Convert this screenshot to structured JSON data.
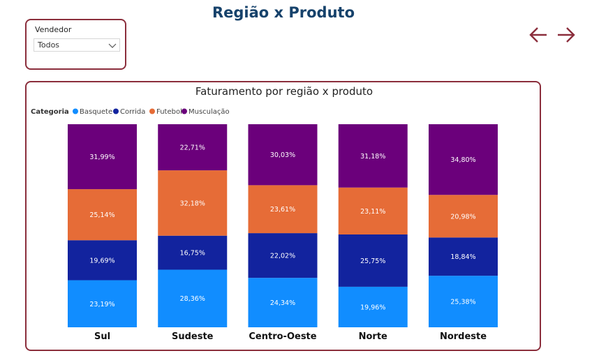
{
  "page": {
    "title": "Região x Produto"
  },
  "slicer": {
    "label": "Vendedor",
    "value": "Todos"
  },
  "nav": {
    "back_icon": "arrow-left-icon",
    "next_icon": "arrow-right-icon",
    "color": "#8b2e3c"
  },
  "chart_data": {
    "type": "bar",
    "stacked": "100%",
    "title": "Faturamento por região x produto",
    "legend_title": "Categoria",
    "legend_position": "top-left",
    "xlabel": "",
    "ylabel": "",
    "categories": [
      "Sul",
      "Sudeste",
      "Centro-Oeste",
      "Norte",
      "Nordeste"
    ],
    "series": [
      {
        "name": "Basquete",
        "color": "#118dff",
        "values": [
          23.19,
          28.36,
          24.34,
          19.96,
          25.38
        ],
        "labels": [
          "23,19%",
          "28,36%",
          "24,34%",
          "19,96%",
          "25,38%"
        ]
      },
      {
        "name": "Corrida",
        "color": "#12239e",
        "values": [
          19.69,
          16.75,
          22.02,
          25.75,
          18.84
        ],
        "labels": [
          "19,69%",
          "16,75%",
          "22,02%",
          "25,75%",
          "18,84%"
        ]
      },
      {
        "name": "Futebol",
        "color": "#e66c37",
        "values": [
          25.14,
          32.18,
          23.61,
          23.11,
          20.98
        ],
        "labels": [
          "25,14%",
          "32,18%",
          "23,61%",
          "23,11%",
          "20,98%"
        ]
      },
      {
        "name": "Musculação",
        "color": "#6b007b",
        "values": [
          31.99,
          22.71,
          30.03,
          31.18,
          34.8
        ],
        "labels": [
          "31,99%",
          "22,71%",
          "30,03%",
          "31,18%",
          "34,80%"
        ]
      }
    ]
  }
}
